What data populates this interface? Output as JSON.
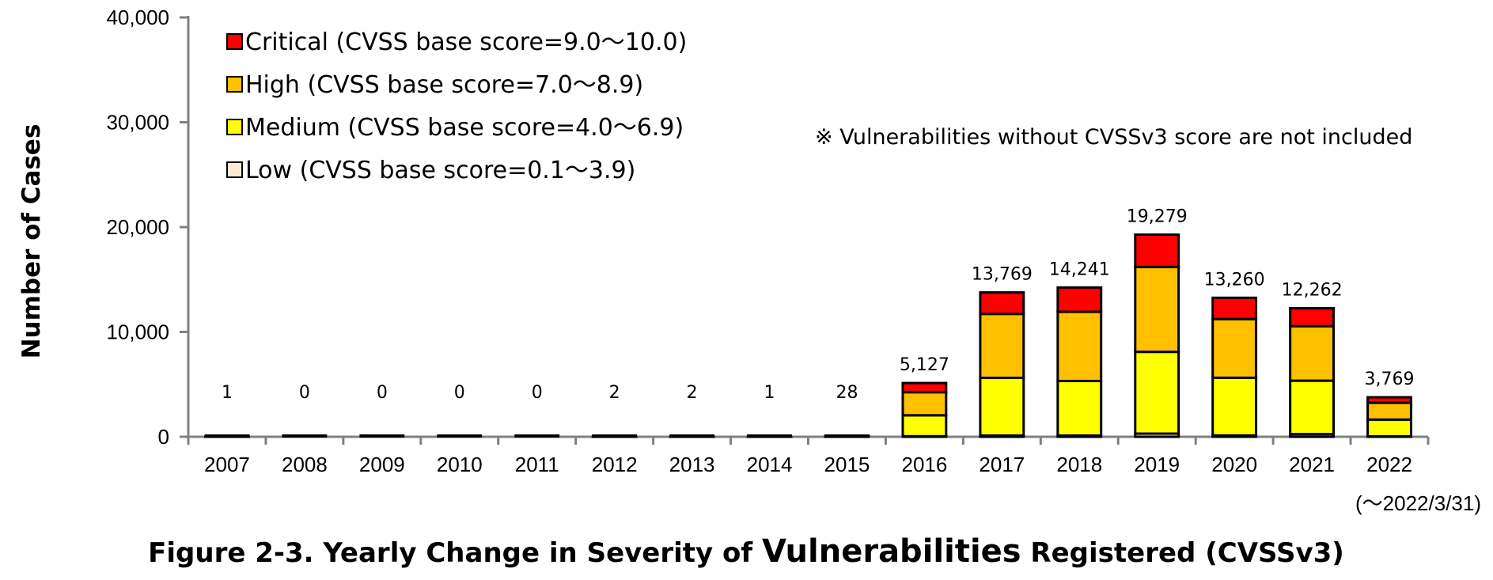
{
  "chart_data": {
    "type": "bar",
    "stacked": true,
    "title": "Figure 2-3. Yearly Change in Severity of Vulnerabilities Registered (CVSSv3)",
    "title_parts": [
      "Figure 2-3. Yearly Change in Severity of ",
      "Vulnerabilities",
      " Registered (CVSSv3)"
    ],
    "ylabel": "Number of Cases",
    "xlabel": "",
    "ylim": [
      0,
      40000
    ],
    "yticks": [
      0,
      10000,
      20000,
      30000,
      40000
    ],
    "ytick_labels": [
      "0",
      "10,000",
      "20,000",
      "30,000",
      "40,000"
    ],
    "grid": false,
    "categories": [
      "2007",
      "2008",
      "2009",
      "2010",
      "2011",
      "2012",
      "2013",
      "2014",
      "2015",
      "2016",
      "2017",
      "2018",
      "2019",
      "2020",
      "2021",
      "2022"
    ],
    "x_note": "(～2022/3/31)",
    "note": "※ Vulnerabilities without CVSSv3 score are not included",
    "legend_position": "top-left",
    "series": [
      {
        "name": "Low (CVSS base score=0.1～3.9)",
        "color": "#fde9d9",
        "values": [
          0,
          0,
          0,
          0,
          0,
          0,
          0,
          0,
          0,
          50,
          120,
          120,
          300,
          130,
          250,
          40
        ]
      },
      {
        "name": "Medium (CVSS base score=4.0～6.9)",
        "color": "#ffff00",
        "values": [
          1,
          0,
          0,
          0,
          0,
          2,
          2,
          1,
          18,
          2000,
          5500,
          5200,
          7800,
          5500,
          5100,
          1600
        ]
      },
      {
        "name": "High (CVSS base score=7.0～8.9)",
        "color": "#ffc000",
        "values": [
          0,
          0,
          0,
          0,
          0,
          0,
          0,
          0,
          7,
          2200,
          6100,
          6600,
          8100,
          5600,
          5200,
          1600
        ]
      },
      {
        "name": "Critical (CVSS base score=9.0～10.0)",
        "color": "#ff0000",
        "values": [
          0,
          0,
          0,
          0,
          0,
          0,
          0,
          0,
          3,
          877,
          2049,
          2321,
          3079,
          2030,
          1712,
          529
        ]
      }
    ],
    "totals": [
      1,
      0,
      0,
      0,
      0,
      2,
      2,
      1,
      28,
      5127,
      13769,
      14241,
      19279,
      13260,
      12262,
      3769
    ],
    "total_labels": [
      "1",
      "0",
      "0",
      "0",
      "0",
      "2",
      "2",
      "1",
      "28",
      "5,127",
      "13,769",
      "14,241",
      "19,279",
      "13,260",
      "12,262",
      "3,769"
    ],
    "legend_order": [
      "Critical (CVSS base score=9.0～10.0)",
      "High (CVSS base score=7.0～8.9)",
      "Medium (CVSS base score=4.0～6.9)",
      "Low (CVSS base score=0.1～3.9)"
    ]
  }
}
